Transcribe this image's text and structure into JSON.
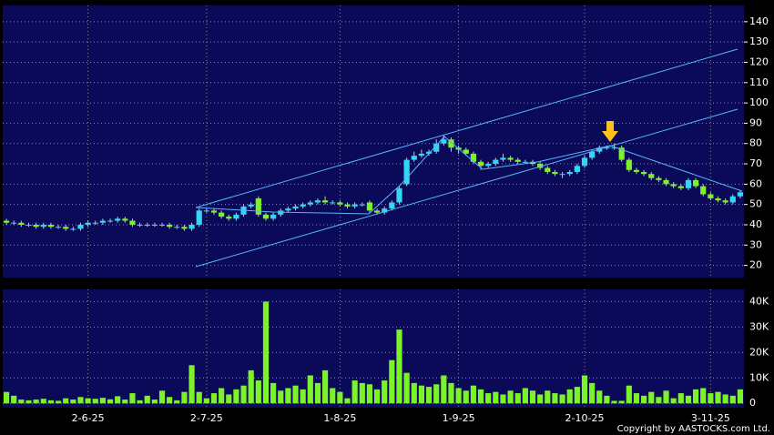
{
  "chart_data": {
    "type": "candlestick",
    "categories": [
      null,
      null,
      null,
      null,
      null,
      null,
      null,
      null,
      null,
      null,
      null,
      "2-6-25",
      null,
      null,
      null,
      null,
      null,
      null,
      null,
      null,
      null,
      null,
      null,
      null,
      null,
      null,
      null,
      "2-7-25",
      null,
      null,
      null,
      null,
      null,
      null,
      null,
      null,
      null,
      null,
      null,
      null,
      null,
      null,
      null,
      null,
      null,
      "1-8-25",
      null,
      null,
      null,
      null,
      null,
      null,
      null,
      null,
      null,
      null,
      null,
      null,
      null,
      null,
      null,
      "1-9-25",
      null,
      null,
      null,
      null,
      null,
      null,
      null,
      null,
      null,
      null,
      null,
      null,
      null,
      null,
      null,
      null,
      "2-10-25",
      null,
      null,
      null,
      null,
      null,
      null,
      null,
      null,
      null,
      null,
      null,
      null,
      null,
      null,
      null,
      null,
      "3-11-25",
      null,
      null,
      null,
      null
    ],
    "open": [
      42,
      41,
      41,
      40,
      40,
      39,
      40,
      39,
      39,
      38,
      38,
      40,
      41,
      41,
      42,
      42,
      43,
      42,
      40,
      40,
      40,
      40,
      40,
      39,
      39,
      38,
      40,
      47,
      47,
      46,
      44,
      43,
      45,
      49,
      53,
      45,
      43,
      45,
      47,
      48,
      49,
      50,
      51,
      52,
      51,
      51,
      50,
      49,
      50,
      51,
      47,
      46,
      48,
      51,
      60,
      72,
      74,
      75,
      76,
      80,
      82,
      78,
      77,
      75,
      71,
      69,
      70,
      72,
      73,
      72,
      71,
      71,
      70,
      68,
      66,
      65,
      65,
      66,
      69,
      73,
      76,
      78,
      78,
      78,
      72,
      67,
      66,
      65,
      63,
      62,
      60,
      59,
      58,
      62,
      59,
      55,
      53,
      52,
      51,
      54
    ],
    "high": [
      43,
      42,
      42,
      41,
      41,
      41,
      41,
      40,
      40,
      39,
      41,
      42,
      42,
      43,
      43,
      44,
      44,
      43,
      41,
      41,
      41,
      41,
      41,
      40,
      40,
      41,
      48,
      48,
      48,
      47,
      45,
      46,
      50,
      51,
      54,
      46,
      46,
      48,
      49,
      50,
      51,
      52,
      53,
      54,
      52,
      52,
      51,
      51,
      51,
      52,
      48,
      49,
      52,
      59,
      73,
      76,
      77,
      77,
      82,
      84,
      83,
      79,
      78,
      76,
      72,
      71,
      73,
      75,
      74,
      73,
      72,
      72,
      71,
      69,
      67,
      66,
      67,
      70,
      74,
      77,
      79,
      79,
      80,
      79,
      73,
      68,
      67,
      66,
      64,
      63,
      61,
      60,
      63,
      63,
      60,
      56,
      54,
      53,
      55,
      57
    ],
    "low": [
      40,
      40,
      39,
      39,
      38,
      38,
      38,
      38,
      37,
      37,
      37,
      39,
      40,
      40,
      41,
      41,
      41,
      39,
      39,
      39,
      39,
      39,
      38,
      38,
      37,
      37,
      39,
      46,
      45,
      43,
      42,
      42,
      44,
      48,
      44,
      42,
      42,
      44,
      46,
      47,
      48,
      49,
      50,
      50,
      50,
      49,
      48,
      48,
      49,
      46,
      45,
      45,
      47,
      50,
      59,
      71,
      73,
      74,
      75,
      79,
      76,
      75,
      74,
      70,
      67,
      68,
      69,
      71,
      71,
      70,
      70,
      69,
      67,
      65,
      64,
      63,
      64,
      65,
      68,
      72,
      75,
      77,
      77,
      71,
      66,
      65,
      64,
      62,
      61,
      59,
      58,
      57,
      57,
      58,
      54,
      52,
      51,
      50,
      50,
      53
    ],
    "close": [
      41,
      41,
      40,
      40,
      39,
      40,
      39,
      39,
      38,
      38,
      40,
      41,
      41,
      42,
      42,
      43,
      42,
      40,
      40,
      40,
      40,
      40,
      39,
      39,
      38,
      40,
      47,
      47,
      46,
      44,
      43,
      45,
      49,
      50,
      45,
      43,
      45,
      47,
      48,
      49,
      50,
      51,
      52,
      51,
      51,
      50,
      49,
      50,
      50,
      47,
      46,
      48,
      51,
      58,
      72,
      74,
      75,
      76,
      80,
      82,
      78,
      77,
      75,
      71,
      69,
      70,
      72,
      73,
      72,
      71,
      71,
      70,
      68,
      66,
      65,
      65,
      66,
      69,
      73,
      76,
      78,
      78,
      78,
      72,
      67,
      66,
      65,
      63,
      62,
      60,
      59,
      58,
      62,
      59,
      55,
      53,
      52,
      51,
      54,
      56
    ],
    "volumes": [
      4500,
      3000,
      1500,
      1200,
      1500,
      1800,
      1200,
      1000,
      2000,
      1500,
      2500,
      2000,
      1800,
      2200,
      1600,
      2800,
      1500,
      4000,
      1200,
      3000,
      1500,
      5000,
      2500,
      1200,
      4500,
      15000,
      4500,
      2000,
      4000,
      6000,
      3500,
      5500,
      7000,
      13000,
      9000,
      40000,
      8000,
      5000,
      6000,
      7000,
      5500,
      11000,
      8000,
      13000,
      6000,
      4500,
      2000,
      9000,
      8000,
      7500,
      5500,
      9000,
      17000,
      29000,
      12000,
      8000,
      7000,
      6500,
      7500,
      11000,
      8000,
      6000,
      5000,
      7000,
      5500,
      4000,
      4500,
      3500,
      5000,
      4000,
      6000,
      5000,
      3500,
      5000,
      4000,
      3500,
      5500,
      6500,
      11000,
      8000,
      5000,
      3000,
      1000,
      1000,
      7000,
      4000,
      3000,
      4500,
      2500,
      5000,
      2000,
      4000,
      3000,
      5500,
      6000,
      4000,
      4500,
      3500,
      3000,
      5500
    ],
    "up_color": "#33d6f5",
    "down_color": "#7cf22a",
    "volume_color": "#7cf22a",
    "ylim": [
      14,
      148
    ],
    "yticks": [
      20,
      30,
      40,
      50,
      60,
      70,
      80,
      90,
      100,
      110,
      120,
      130,
      140
    ],
    "volume_ylim": [
      -1700,
      44800
    ],
    "volume_yticks": [
      0,
      {
        "value": 10000,
        "label": "10K"
      },
      {
        "value": 20000,
        "label": "20K"
      },
      {
        "value": 30000,
        "label": "30K"
      },
      {
        "value": 40000,
        "label": "40K"
      }
    ],
    "grid": true,
    "copyright": "Copyright by AASTOCKS.com Ltd."
  }
}
